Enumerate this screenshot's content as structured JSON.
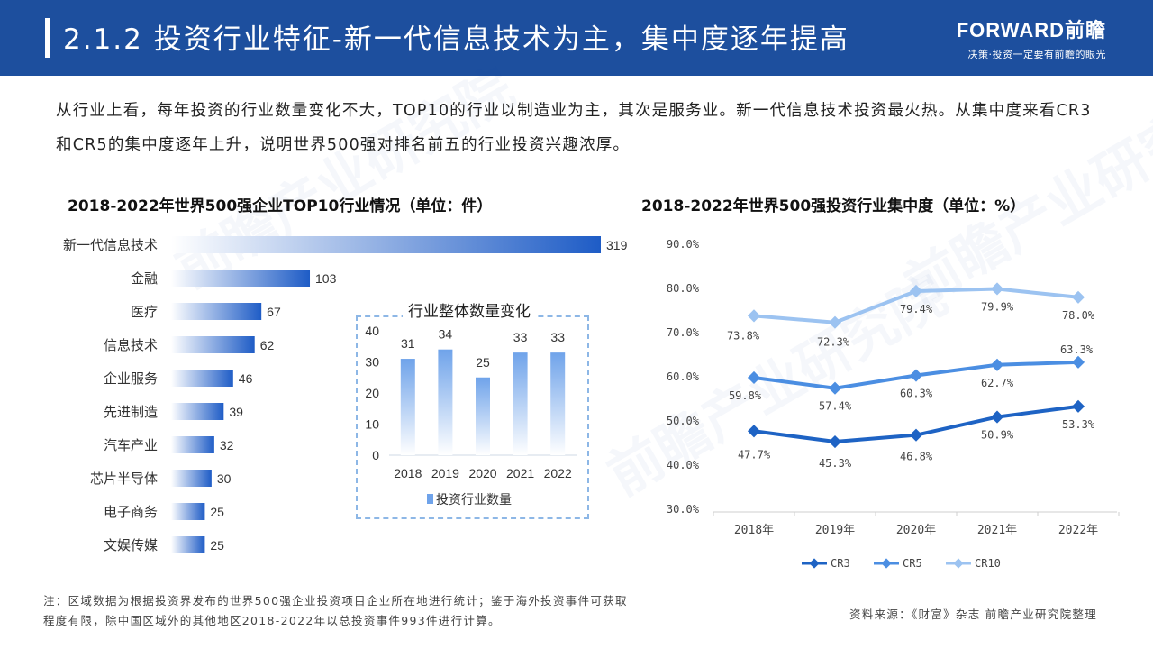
{
  "header": {
    "title": "2.1.2 投资行业特征-新一代信息技术为主，集中度逐年提高",
    "brand": "FORWARD前瞻",
    "slogan": "决策·投资一定要有前瞻的眼光"
  },
  "intro": "从行业上看，每年投资的行业数量变化不大，TOP10的行业以制造业为主，其次是服务业。新一代信息技术投资最火热。从集中度来看CR3和CR5的集中度逐年上升，说明世界500强对排名前五的行业投资兴趣浓厚。",
  "colors": {
    "header": "#1d4f9e",
    "bar": "#1e5cc6",
    "cr3": "#1e63c4",
    "cr5": "#4b8ee2",
    "cr10": "#9cc3f1"
  },
  "chart_data": [
    {
      "type": "bar",
      "orientation": "horizontal",
      "title": "2018-2022年世界500强企业TOP10行业情况（单位：件）",
      "categories": [
        "新一代信息技术",
        "金融",
        "医疗",
        "信息技术",
        "企业服务",
        "先进制造",
        "汽车产业",
        "芯片半导体",
        "电子商务",
        "文娱传媒"
      ],
      "values": [
        319,
        103,
        67,
        62,
        46,
        39,
        32,
        30,
        25,
        25
      ],
      "data_labels": [
        "319",
        "103",
        "67",
        "62",
        "46",
        "39",
        "32",
        "30",
        "25",
        "25"
      ]
    },
    {
      "type": "bar",
      "title": "行业整体数量变化",
      "categories": [
        "2018",
        "2019",
        "2020",
        "2021",
        "2022"
      ],
      "values": [
        31,
        34,
        25,
        33,
        33
      ],
      "data_labels": [
        "31",
        "34",
        "25",
        "33",
        "33"
      ],
      "yticks": [
        "0",
        "10",
        "20",
        "30",
        "40"
      ],
      "ylim": [
        0,
        40
      ],
      "legend": "投资行业数量",
      "legend_position": "bottom"
    },
    {
      "type": "line",
      "title": "2018-2022年世界500强投资行业集中度（单位：%）",
      "categories": [
        "2018年",
        "2019年",
        "2020年",
        "2021年",
        "2022年"
      ],
      "ylim": [
        30,
        90
      ],
      "yticks": [
        "30.0%",
        "40.0%",
        "50.0%",
        "60.0%",
        "70.0%",
        "80.0%",
        "90.0%"
      ],
      "series": [
        {
          "name": "CR3",
          "values": [
            47.7,
            45.3,
            46.8,
            50.9,
            53.3
          ],
          "labels": [
            "47.7%",
            "45.3%",
            "46.8%",
            "50.9%",
            "53.3%"
          ]
        },
        {
          "name": "CR5",
          "values": [
            59.8,
            57.4,
            60.3,
            62.7,
            63.3
          ],
          "labels": [
            "59.8%",
            "57.4%",
            "60.3%",
            "62.7%",
            "63.3%"
          ]
        },
        {
          "name": "CR10",
          "values": [
            73.8,
            72.3,
            79.4,
            79.9,
            78.0
          ],
          "labels": [
            "73.8%",
            "72.3%",
            "79.4%",
            "79.9%",
            "78.0%"
          ]
        }
      ],
      "legend_position": "bottom"
    }
  ],
  "note": "注：区域数据为根据投资界发布的世界500强企业投资项目企业所在地进行统计；鉴于海外投资事件可获取程度有限，除中国区域外的其他地区2018-2022年以总投资事件993件进行计算。",
  "source": "资料来源：《财富》杂志 前瞻产业研究院整理"
}
